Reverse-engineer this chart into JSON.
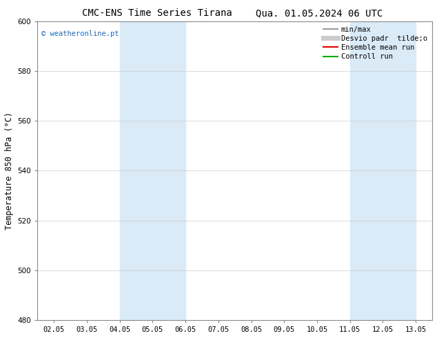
{
  "title_left": "CMC-ENS Time Series Tirana",
  "title_right": "Qua. 01.05.2024 06 UTC",
  "ylabel": "Temperature 850 hPa (°C)",
  "ylim": [
    480,
    600
  ],
  "yticks": [
    480,
    500,
    520,
    540,
    560,
    580,
    600
  ],
  "x_labels": [
    "02.05",
    "03.05",
    "04.05",
    "05.05",
    "06.05",
    "07.05",
    "08.05",
    "09.05",
    "10.05",
    "11.05",
    "12.05",
    "13.05"
  ],
  "x_values": [
    0,
    1,
    2,
    3,
    4,
    5,
    6,
    7,
    8,
    9,
    10,
    11
  ],
  "xlim": [
    -0.5,
    11.5
  ],
  "shaded_bands": [
    {
      "xmin": 2.0,
      "xmax": 4.0,
      "color": "#daeaf7"
    },
    {
      "xmin": 9.0,
      "xmax": 11.0,
      "color": "#daeaf7"
    }
  ],
  "watermark": "© weatheronline.pt",
  "watermark_color": "#1a6abf",
  "legend_entries": [
    {
      "label": "min/max",
      "color": "#999999",
      "lw": 1.5
    },
    {
      "label": "Desvio padr  tilde;o",
      "color": "#cccccc",
      "lw": 5
    },
    {
      "label": "Ensemble mean run",
      "color": "#dd0000",
      "lw": 1.5
    },
    {
      "label": "Controll run",
      "color": "#00aa00",
      "lw": 1.5
    }
  ],
  "bg_color": "#ffffff",
  "plot_bg_color": "#ffffff",
  "grid_color": "#cccccc",
  "tick_label_fontsize": 7.5,
  "axis_label_fontsize": 8.5,
  "title_fontsize": 10,
  "legend_fontsize": 7.5
}
